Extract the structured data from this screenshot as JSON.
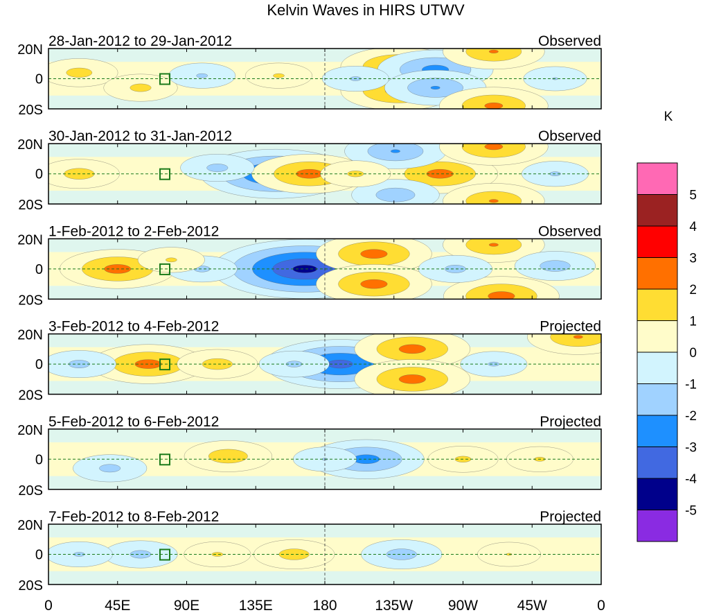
{
  "chart_data": {
    "type": "heatmap",
    "title": "Kelvin Waves in HIRS UTWV",
    "colorbar": {
      "unit": "K",
      "levels": [
        5,
        4,
        3,
        2,
        1,
        0,
        -1,
        -2,
        -3,
        -4,
        -5
      ],
      "colors": [
        "#FF69B4",
        "#9B2222",
        "#FF0000",
        "#FF7000",
        "#FFDD33",
        "#FFFCCA",
        "#D2F4FE",
        "#A0D2FF",
        "#1E90FF",
        "#4169E1",
        "#00008B",
        "#8A2BE2"
      ]
    },
    "x_ticks": [
      "0",
      "45E",
      "90E",
      "135E",
      "180",
      "135W",
      "90W",
      "45W",
      "0"
    ],
    "y_ticks": [
      "20N",
      "0",
      "20S"
    ],
    "xlim": [
      0,
      360
    ],
    "ylim": [
      -20,
      20
    ],
    "panels": [
      {
        "date_label": "28-Jan-2012 to 29-Jan-2012",
        "status": "Observed",
        "features": [
          [
            228,
            8,
            2.6
          ],
          [
            228,
            -8,
            2.6
          ],
          [
            252,
            6,
            -2.6
          ],
          [
            252,
            -6,
            -2.2
          ],
          [
            20,
            4,
            1.5
          ],
          [
            60,
            -6,
            1.4
          ],
          [
            150,
            2,
            1.2
          ],
          [
            290,
            -18,
            2.4
          ],
          [
            290,
            18,
            2.2
          ],
          [
            100,
            2,
            -1.2
          ],
          [
            200,
            0,
            -1.2
          ],
          [
            330,
            0,
            -1.1
          ]
        ]
      },
      {
        "date_label": "30-Jan-2012 to 31-Jan-2012",
        "status": "Observed",
        "features": [
          [
            148,
            0,
            -3.6
          ],
          [
            170,
            0,
            2.6
          ],
          [
            255,
            0,
            2.6
          ],
          [
            226,
            15,
            -2.2
          ],
          [
            226,
            -14,
            -1.8
          ],
          [
            20,
            0,
            1.6
          ],
          [
            290,
            18,
            2.4
          ],
          [
            290,
            -18,
            2.2
          ],
          [
            110,
            4,
            -1.4
          ],
          [
            200,
            0,
            1.3
          ],
          [
            330,
            0,
            -1.2
          ]
        ]
      },
      {
        "date_label": "1-Feb-2012 to 2-Feb-2012",
        "status": "Observed",
        "features": [
          [
            167,
            0,
            -4.6
          ],
          [
            212,
            10,
            2.6
          ],
          [
            212,
            -10,
            2.6
          ],
          [
            45,
            0,
            2.6
          ],
          [
            290,
            16,
            2.2
          ],
          [
            295,
            -18,
            2.6
          ],
          [
            100,
            0,
            -1.3
          ],
          [
            265,
            0,
            -1.4
          ],
          [
            80,
            6,
            1.2
          ],
          [
            330,
            2,
            -1.6
          ]
        ]
      },
      {
        "date_label": "3-Feb-2012 to 4-Feb-2012",
        "status": "Projected",
        "features": [
          [
            190,
            0,
            -3.6
          ],
          [
            237,
            10,
            2.6
          ],
          [
            237,
            -10,
            2.6
          ],
          [
            65,
            0,
            2.6
          ],
          [
            110,
            0,
            1.6
          ],
          [
            20,
            0,
            -1.4
          ],
          [
            160,
            0,
            -1.3
          ],
          [
            290,
            0,
            -1.2
          ],
          [
            345,
            18,
            2.2
          ]
        ]
      },
      {
        "date_label": "5-Feb-2012 to 6-Feb-2012",
        "status": "Projected",
        "features": [
          [
            207,
            0,
            -2.6
          ],
          [
            117,
            2,
            1.8
          ],
          [
            40,
            -6,
            -1.4
          ],
          [
            270,
            0,
            1.3
          ],
          [
            180,
            0,
            -1.1
          ],
          [
            320,
            0,
            1.2
          ]
        ]
      },
      {
        "date_label": "7-Feb-2012 to 8-Feb-2012",
        "status": "Projected",
        "features": [
          [
            230,
            0,
            -1.6
          ],
          [
            160,
            0,
            1.6
          ],
          [
            60,
            0,
            -1.4
          ],
          [
            110,
            0,
            1.2
          ],
          [
            300,
            0,
            1.1
          ],
          [
            20,
            0,
            -1.2
          ]
        ]
      }
    ]
  }
}
